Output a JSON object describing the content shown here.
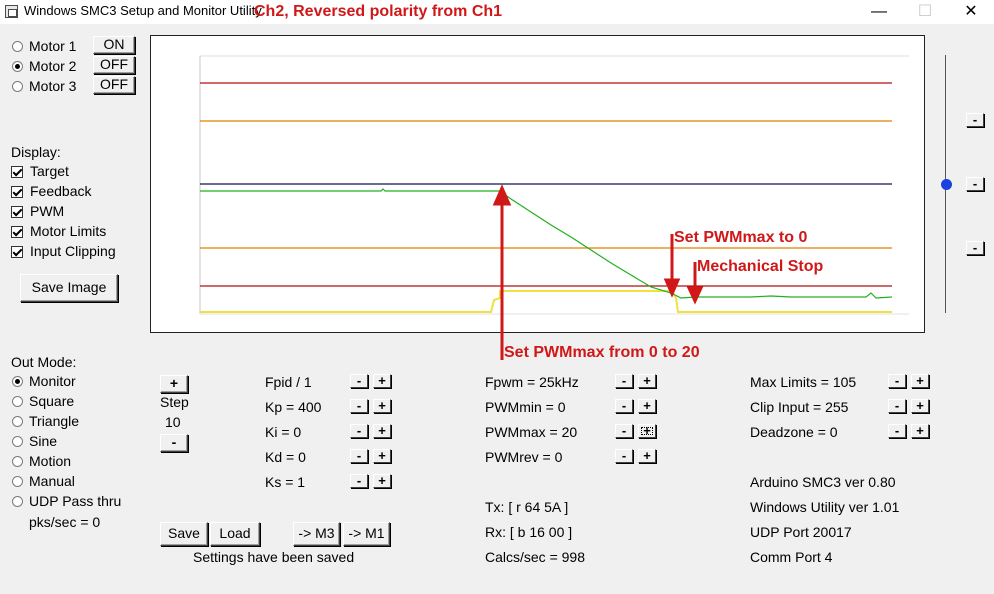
{
  "window": {
    "title": "Windows SMC3 Setup and Monitor Utility",
    "annotation_title": "Ch2, Reversed polarity from Ch1",
    "minimize_glyph": "—",
    "maximize_glyph": "☐",
    "close_glyph": "✕"
  },
  "motors": [
    {
      "label": "Motor 1",
      "selected": false,
      "state": "ON"
    },
    {
      "label": "Motor 2",
      "selected": true,
      "state": "OFF"
    },
    {
      "label": "Motor 3",
      "selected": false,
      "state": "OFF"
    }
  ],
  "display": {
    "heading": "Display:",
    "options": [
      {
        "label": "Target",
        "checked": true
      },
      {
        "label": "Feedback",
        "checked": true
      },
      {
        "label": "PWM",
        "checked": true
      },
      {
        "label": "Motor Limits",
        "checked": true
      },
      {
        "label": "Input Clipping",
        "checked": true
      }
    ],
    "save_image": "Save Image"
  },
  "out_mode": {
    "heading": "Out Mode:",
    "options": [
      {
        "label": "Monitor",
        "selected": true
      },
      {
        "label": "Square",
        "selected": false
      },
      {
        "label": "Triangle",
        "selected": false
      },
      {
        "label": "Sine",
        "selected": false
      },
      {
        "label": "Motion",
        "selected": false
      },
      {
        "label": "Manual",
        "selected": false
      },
      {
        "label": "UDP Pass thru",
        "selected": false
      }
    ],
    "pks": "pks/sec = 0"
  },
  "step": {
    "label": "Step",
    "value": "10",
    "plus": "+",
    "minus": "-"
  },
  "pid": [
    {
      "label": "Fpid / 1"
    },
    {
      "label": "Kp = 400"
    },
    {
      "label": "Ki = 0"
    },
    {
      "label": "Kd = 0"
    },
    {
      "label": "Ks = 1"
    }
  ],
  "pwm": [
    {
      "label": "Fpwm = 25kHz"
    },
    {
      "label": "PWMmin = 0"
    },
    {
      "label": "PWMmax = 20"
    },
    {
      "label": "PWMrev = 0"
    }
  ],
  "limits": [
    {
      "label": "Max Limits = 105"
    },
    {
      "label": "Clip Input = 255"
    },
    {
      "label": "Deadzone = 0"
    }
  ],
  "comm": {
    "tx": "Tx: [ r 64 5A ]",
    "rx": "Rx: [ b 16 00 ]",
    "calcs": "Calcs/sec = 998"
  },
  "info": {
    "arduino": "Arduino SMC3 ver 0.80",
    "utility": "Windows Utility ver 1.01",
    "udp": "UDP Port 20017",
    "comm_port": "Comm Port 4"
  },
  "bottom": {
    "save": "Save",
    "load": "Load",
    "to_m3": "-> M3",
    "to_m1": "-> M1",
    "status": "Settings have been saved"
  },
  "small_buttons": {
    "minus": "-",
    "plus": "+"
  },
  "annotations": {
    "set_pwm_zero": "Set PWMmax to 0",
    "mechanical_stop": "Mechanical Stop",
    "set_pwm_20": "Set PWMmax from 0 to 20"
  },
  "colors": {
    "limit_line": "#b01010",
    "clip_line": "#e08000",
    "target_line": "#101050",
    "feedback_line": "#20b020",
    "pwm_line": "#f0e040",
    "annotation": "#d01818"
  }
}
